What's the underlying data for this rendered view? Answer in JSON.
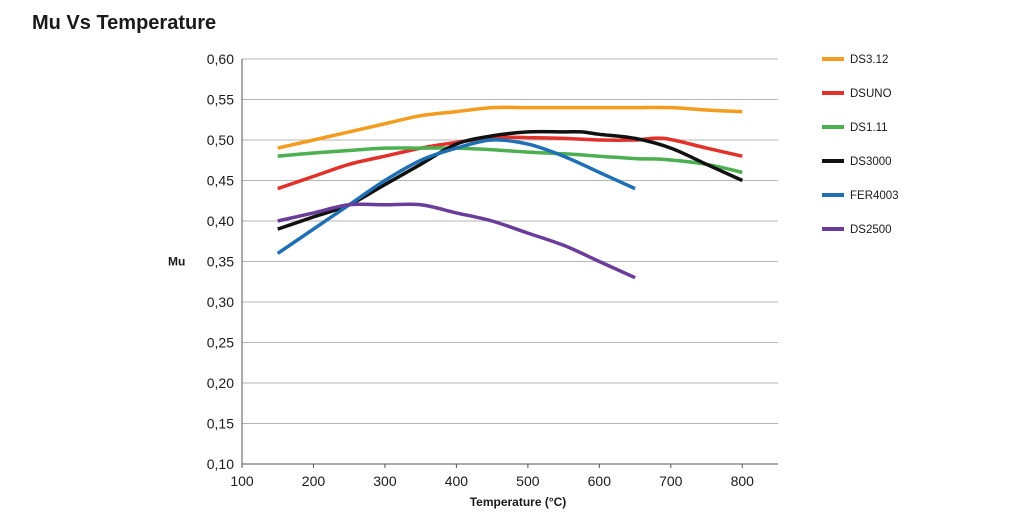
{
  "chart_data": {
    "type": "line",
    "title": "Mu Vs Temperature",
    "xlabel": "Temperature (°C)",
    "ylabel": "Mu",
    "xlim": [
      100,
      850
    ],
    "ylim": [
      0.1,
      0.6
    ],
    "x_ticks": [
      "100",
      "200",
      "300",
      "400",
      "500",
      "600",
      "700",
      "800"
    ],
    "y_ticks": [
      "0,10",
      "0,15",
      "0,20",
      "0,25",
      "0,30",
      "0,35",
      "0,40",
      "0,45",
      "0,50",
      "0,55",
      "0,60"
    ],
    "grid": "horizontal",
    "legend_position": "right",
    "series": [
      {
        "name": "DS3.12",
        "color": "#f39c1e",
        "points": [
          [
            150,
            0.49
          ],
          [
            200,
            0.5
          ],
          [
            250,
            0.51
          ],
          [
            300,
            0.52
          ],
          [
            350,
            0.53
          ],
          [
            400,
            0.535
          ],
          [
            450,
            0.54
          ],
          [
            500,
            0.54
          ],
          [
            550,
            0.54
          ],
          [
            600,
            0.54
          ],
          [
            650,
            0.54
          ],
          [
            700,
            0.54
          ],
          [
            750,
            0.537
          ],
          [
            800,
            0.535
          ]
        ]
      },
      {
        "name": "DSUNO",
        "color": "#e2312b",
        "points": [
          [
            150,
            0.44
          ],
          [
            200,
            0.455
          ],
          [
            250,
            0.47
          ],
          [
            300,
            0.48
          ],
          [
            350,
            0.49
          ],
          [
            400,
            0.497
          ],
          [
            450,
            0.503
          ],
          [
            500,
            0.503
          ],
          [
            550,
            0.502
          ],
          [
            600,
            0.5
          ],
          [
            650,
            0.5
          ],
          [
            690,
            0.502
          ],
          [
            750,
            0.49
          ],
          [
            800,
            0.48
          ]
        ]
      },
      {
        "name": "DS1.11",
        "color": "#4caf50",
        "points": [
          [
            150,
            0.48
          ],
          [
            200,
            0.484
          ],
          [
            250,
            0.487
          ],
          [
            300,
            0.49
          ],
          [
            350,
            0.49
          ],
          [
            400,
            0.49
          ],
          [
            450,
            0.488
          ],
          [
            500,
            0.485
          ],
          [
            550,
            0.483
          ],
          [
            600,
            0.48
          ],
          [
            650,
            0.477
          ],
          [
            690,
            0.476
          ],
          [
            750,
            0.47
          ],
          [
            800,
            0.46
          ]
        ]
      },
      {
        "name": "DS3000",
        "color": "#111111",
        "points": [
          [
            150,
            0.39
          ],
          [
            200,
            0.405
          ],
          [
            250,
            0.42
          ],
          [
            300,
            0.445
          ],
          [
            350,
            0.47
          ],
          [
            400,
            0.495
          ],
          [
            450,
            0.505
          ],
          [
            500,
            0.51
          ],
          [
            550,
            0.51
          ],
          [
            575,
            0.51
          ],
          [
            600,
            0.507
          ],
          [
            650,
            0.502
          ],
          [
            700,
            0.49
          ],
          [
            750,
            0.47
          ],
          [
            800,
            0.45
          ]
        ]
      },
      {
        "name": "FER4003",
        "color": "#1f6fb5",
        "points": [
          [
            150,
            0.36
          ],
          [
            200,
            0.39
          ],
          [
            250,
            0.42
          ],
          [
            300,
            0.45
          ],
          [
            350,
            0.475
          ],
          [
            400,
            0.49
          ],
          [
            450,
            0.5
          ],
          [
            500,
            0.495
          ],
          [
            550,
            0.48
          ],
          [
            600,
            0.46
          ],
          [
            650,
            0.44
          ]
        ]
      },
      {
        "name": "DS2500",
        "color": "#6a3d9a",
        "points": [
          [
            150,
            0.4
          ],
          [
            200,
            0.41
          ],
          [
            250,
            0.42
          ],
          [
            300,
            0.42
          ],
          [
            350,
            0.42
          ],
          [
            400,
            0.41
          ],
          [
            450,
            0.4
          ],
          [
            500,
            0.385
          ],
          [
            550,
            0.37
          ],
          [
            600,
            0.35
          ],
          [
            650,
            0.33
          ]
        ]
      }
    ]
  }
}
